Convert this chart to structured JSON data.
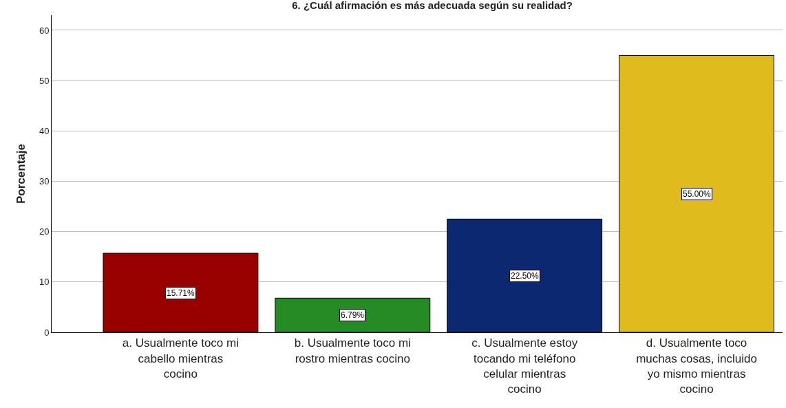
{
  "chart_data": {
    "type": "bar",
    "title": "6. ¿Cuál afirmación es más adecuada según su realidad?",
    "ylabel": "Porcentaje",
    "categories": [
      "a. Usualmente toco mi cabello mientras cocino",
      "b. Usualmente toco mi rostro mientras cocino",
      "c. Usualmente estoy tocando mi teléfono celular mientras cocino",
      "d. Usualmente toco muchas cosas, incluido yo mismo mientras cocino"
    ],
    "values": [
      15.71,
      6.79,
      22.5,
      55.0
    ],
    "value_labels": [
      "15.71%",
      "6.79%",
      "22.50%",
      "55.00%"
    ],
    "colors": [
      "#990000",
      "#248a24",
      "#0b2870",
      "#e0bb1e"
    ],
    "ylim": [
      0,
      63
    ],
    "yticks": [
      0,
      10,
      20,
      30,
      40,
      50,
      60
    ],
    "grid": "y"
  }
}
